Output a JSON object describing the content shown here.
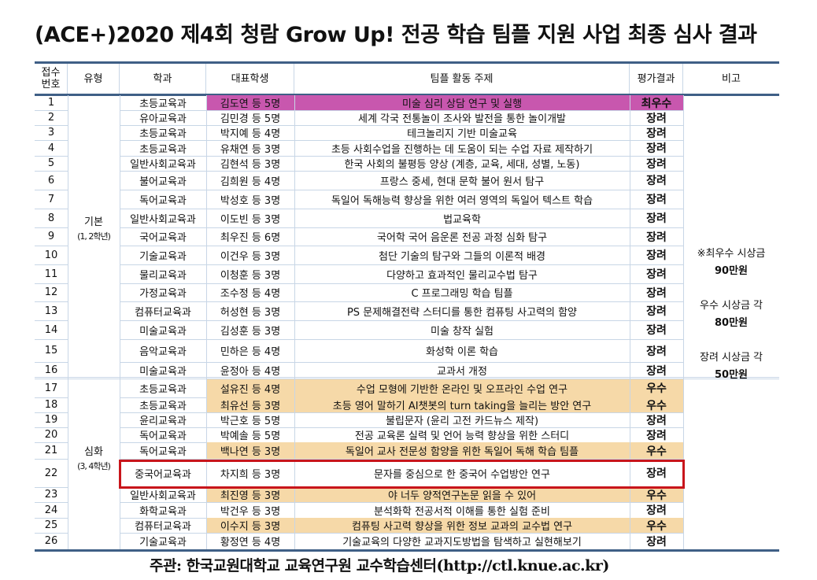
{
  "title": "(ACE+)2020 제4회 청람 Grow Up! 전공 학습 팀플 지원 사업 최종 심사 결과",
  "colors": {
    "border_dark": "#3f5f86",
    "grid": "#c8d6e6",
    "top_award": "#c857ae",
    "excellent": "#f6d9a8",
    "highlight_box": "#c8151b"
  },
  "table": {
    "headers": {
      "no": "접수\n번호",
      "no_line1": "접수",
      "no_line2": "번호",
      "type": "유형",
      "dept": "학과",
      "rep": "대표학생",
      "topic": "팀플 활동 주제",
      "result": "평가결과",
      "note": "비고"
    },
    "groups": [
      {
        "label": "기본",
        "sub": "(1, 2학년)"
      },
      {
        "label": "심화",
        "sub": "(3, 4학년)"
      }
    ],
    "rows": [
      {
        "no": "1",
        "dept": "초등교육과",
        "rep": "김도연 등 5명",
        "topic": "미술 심리 상담 연구 및 실행",
        "result": "최우수"
      },
      {
        "no": "2",
        "dept": "유아교육과",
        "rep": "김민경 등 5명",
        "topic": "세계 각국 전통놀이 조사와 발전을 통한 놀이개발",
        "result": "장려"
      },
      {
        "no": "3",
        "dept": "초등교육과",
        "rep": "박지예 등 4명",
        "topic": "테크놀리지 기반 미술교육",
        "result": "장려"
      },
      {
        "no": "4",
        "dept": "초등교육과",
        "rep": "유채연 등 3명",
        "topic": "초등 사회수업을 진행하는 데 도움이 되는 수업 자료 제작하기",
        "result": "장려"
      },
      {
        "no": "5",
        "dept": "일반사회교육과",
        "rep": "김현석 등 3명",
        "topic": "한국 사회의 불평등 양상 (계층, 교육, 세대, 성별, 노동)",
        "result": "장려"
      },
      {
        "no": "6",
        "dept": "불어교육과",
        "rep": "김희원 등 4명",
        "topic": "프랑스 중세, 현대 문학 불어 원서 탐구",
        "result": "장려"
      },
      {
        "no": "7",
        "dept": "독어교육과",
        "rep": "박성호 등 3명",
        "topic": "독일어 독해능력 향상을 위한 여러 영역의 독일어 텍스트 학습",
        "result": "장려"
      },
      {
        "no": "8",
        "dept": "일반사회교육과",
        "rep": "이도빈 등 3명",
        "topic": "법교육학",
        "result": "장려"
      },
      {
        "no": "9",
        "dept": "국어교육과",
        "rep": "최우진 등 6명",
        "topic": "국어학 국어 음운론 전공 과정 심화 탐구",
        "result": "장려"
      },
      {
        "no": "10",
        "dept": "기술교육과",
        "rep": "이건우 등 3명",
        "topic": "첨단 기술의 탐구와 그들의 이론적 배경",
        "result": "장려"
      },
      {
        "no": "11",
        "dept": "물리교육과",
        "rep": "이청훈 등 3명",
        "topic": "다양하고 효과적인 물리교수법 탐구",
        "result": "장려"
      },
      {
        "no": "12",
        "dept": "가정교육과",
        "rep": "조수정 등 4명",
        "topic": "C 프로그래밍 학습 팀플",
        "result": "장려"
      },
      {
        "no": "13",
        "dept": "컴퓨터교육과",
        "rep": "허성현 등 3명",
        "topic": "PS 문제해결전략 스터디를 통한 컴퓨팅 사고력의 함양",
        "result": "장려"
      },
      {
        "no": "14",
        "dept": "미술교육과",
        "rep": "김성훈 등 3명",
        "topic": "미술 창작 실험",
        "result": "장려"
      },
      {
        "no": "15",
        "dept": "음악교육과",
        "rep": "민하은 등 4명",
        "topic": "화성학 이론 학습",
        "result": "장려"
      },
      {
        "no": "16",
        "dept": "미술교육과",
        "rep": "윤정아 등 4명",
        "topic": "교과서 개정",
        "result": "장려"
      },
      {
        "no": "17",
        "dept": "초등교육과",
        "rep": "설유진 등 4명",
        "topic": "수업 모형에 기반한 온라인 및 오프라인 수업 연구",
        "result": "우수"
      },
      {
        "no": "18",
        "dept": "초등교육과",
        "rep": "최유선 등 3명",
        "topic": "초등 영어 말하기 AI챗봇의 turn taking을 늘리는 방안 연구",
        "result": "우수"
      },
      {
        "no": "19",
        "dept": "윤리교육과",
        "rep": "박근호 등 5명",
        "topic": "불립문자 (윤리 고전 카드뉴스 제작)",
        "result": "장려"
      },
      {
        "no": "20",
        "dept": "독어교육과",
        "rep": "박예솔 등 5명",
        "topic": "전공 교육론 실력 및 언어 능력 향상을 위한 스터디",
        "result": "장려"
      },
      {
        "no": "21",
        "dept": "독어교육과",
        "rep": "백나연 등 3명",
        "topic": "독일어 교사 전문성 함양을 위한 독일어 독해 학습 팀플",
        "result": "우수"
      },
      {
        "no": "22",
        "dept": "중국어교육과",
        "rep": "차지희 등 3명",
        "topic": "문자를 중심으로 한 중국어 수업방안 연구",
        "result": "장려"
      },
      {
        "no": "23",
        "dept": "일반사회교육과",
        "rep": "최진영 등 3명",
        "topic": "야 너두 양적연구논문 읽을 수 있어",
        "result": "우수"
      },
      {
        "no": "24",
        "dept": "화학교육과",
        "rep": "박건우 등 3명",
        "topic": "분석화학 전공서적 이해를 통한 실험 준비",
        "result": "장려"
      },
      {
        "no": "25",
        "dept": "컴퓨터교육과",
        "rep": "이수지 등 3명",
        "topic": "컴퓨팅 사고력 향상을 위한 정보 교과의 교수법 연구",
        "result": "우수"
      },
      {
        "no": "26",
        "dept": "기술교육과",
        "rep": "황정연 등 4명",
        "topic": "기술교육의 다양한 교과지도방법을 탐색하고 실현해보기",
        "result": "장려"
      }
    ],
    "note_lines": [
      "※최우수 시상금",
      "90만원",
      "",
      "우수 시상금 각",
      "80만원",
      "",
      "장려 시상금 각",
      "50만원"
    ]
  },
  "footer": "주관: 한국교원대학교 교육연구원 교수학습센터(http://ctl.knue.ac.kr)"
}
